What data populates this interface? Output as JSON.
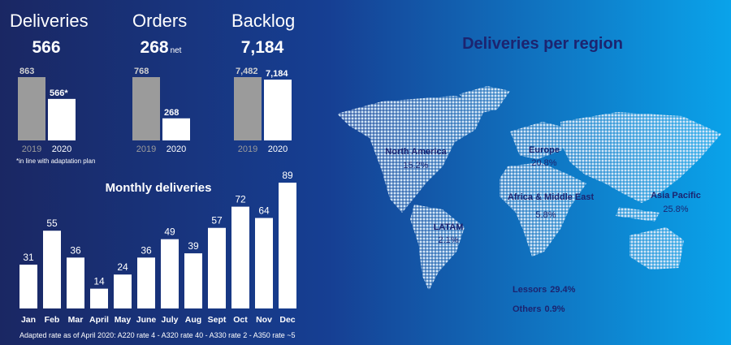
{
  "chart_data": [
    {
      "type": "bar",
      "title": "Deliveries",
      "headline": "566",
      "categories": [
        "2019",
        "2020"
      ],
      "values": [
        863,
        566
      ],
      "value_labels": [
        "863",
        "566*"
      ],
      "colors": [
        "#9b9b9b",
        "#ffffff"
      ],
      "footnote": "*in line with adaptation plan"
    },
    {
      "type": "bar",
      "title": "Orders",
      "headline": "268",
      "headline_note": "net",
      "categories": [
        "2019",
        "2020"
      ],
      "values": [
        768,
        268
      ],
      "colors": [
        "#9b9b9b",
        "#ffffff"
      ]
    },
    {
      "type": "bar",
      "title": "Backlog",
      "headline": "7,184",
      "categories": [
        "2019",
        "2020"
      ],
      "values": [
        7482,
        7184
      ],
      "value_labels": [
        "7,482",
        "7,184"
      ],
      "colors": [
        "#9b9b9b",
        "#ffffff"
      ]
    },
    {
      "type": "bar",
      "title": "Monthly deliveries",
      "categories": [
        "Jan",
        "Feb",
        "Mar",
        "April",
        "May",
        "June",
        "July",
        "Aug",
        "Sept",
        "Oct",
        "Nov",
        "Dec"
      ],
      "values": [
        31,
        55,
        36,
        14,
        24,
        36,
        49,
        39,
        57,
        72,
        64,
        89
      ],
      "color": "#ffffff",
      "note": "Adapted rate as of April 2020: A220 rate 4 - A320 rate 40 - A330 rate 2 - A350 rate ~5"
    },
    {
      "type": "map",
      "title": "Deliveries per region",
      "categories": [
        "North America",
        "Europe",
        "Africa & Middle East",
        "Asia Pacific",
        "LATAM",
        "Lessors",
        "Others"
      ],
      "values": [
        15.2,
        20.8,
        5.8,
        25.8,
        2.1,
        29.4,
        0.9
      ],
      "value_labels": [
        "15.2%",
        "20.8%",
        "5.8%",
        "25.8%",
        "2.1%",
        "29.4%",
        "0.9%"
      ],
      "color": "#1c2470"
    }
  ]
}
